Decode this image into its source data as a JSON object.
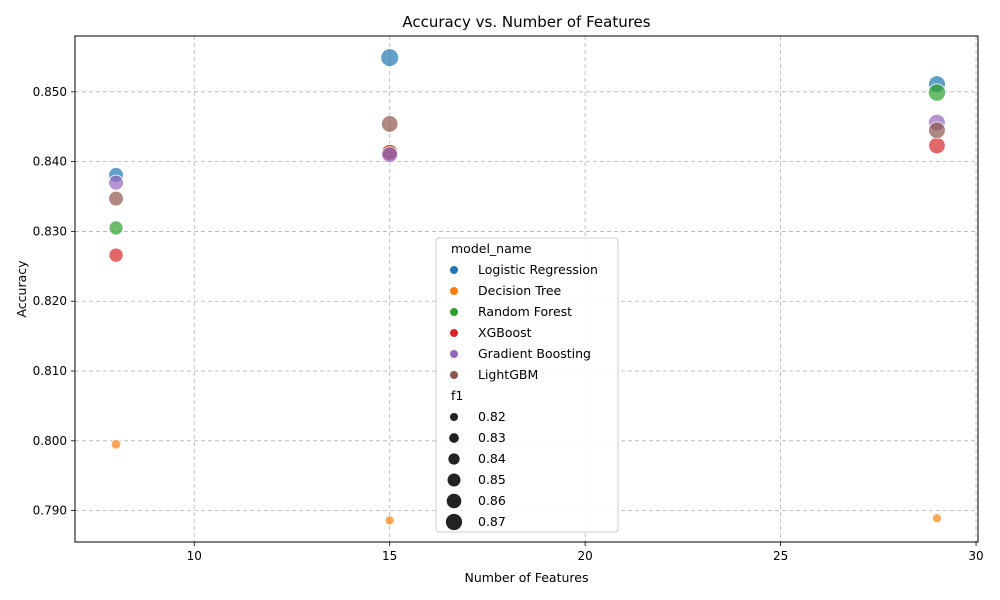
{
  "chart_data": {
    "type": "scatter",
    "title": "Accuracy vs. Number of Features",
    "xlabel": "Number of Features",
    "ylabel": "Accuracy",
    "xlim": [
      6.95,
      30.05
    ],
    "ylim": [
      0.7855,
      0.858
    ],
    "xticks": [
      10,
      15,
      20,
      25,
      30
    ],
    "yticks": [
      0.79,
      0.8,
      0.81,
      0.82,
      0.83,
      0.84,
      0.85
    ],
    "grid": true,
    "legend_placement": "center-bottom",
    "hue_title": "model_name",
    "size_title": "f1",
    "size_legend": [
      0.82,
      0.83,
      0.84,
      0.85,
      0.86,
      0.87
    ],
    "series": [
      {
        "name": "Logistic Regression",
        "color": "#1f77b4",
        "points": [
          {
            "x": 8,
            "y": 0.8381,
            "f1": 0.852
          },
          {
            "x": 15,
            "y": 0.8549,
            "f1": 0.869
          },
          {
            "x": 29,
            "y": 0.8511,
            "f1": 0.864
          }
        ]
      },
      {
        "name": "Decision Tree",
        "color": "#ff7f0e",
        "points": [
          {
            "x": 8,
            "y": 0.7995,
            "f1": 0.823
          },
          {
            "x": 15,
            "y": 0.7886,
            "f1": 0.819
          },
          {
            "x": 29,
            "y": 0.7889,
            "f1": 0.819
          }
        ]
      },
      {
        "name": "Random Forest",
        "color": "#2ca02c",
        "points": [
          {
            "x": 8,
            "y": 0.8305,
            "f1": 0.848
          },
          {
            "x": 15,
            "y": 0.8414,
            "f1": 0.857
          },
          {
            "x": 29,
            "y": 0.8499,
            "f1": 0.866
          }
        ]
      },
      {
        "name": "XGBoost",
        "color": "#d62728",
        "points": [
          {
            "x": 8,
            "y": 0.8266,
            "f1": 0.849
          },
          {
            "x": 15,
            "y": 0.8413,
            "f1": 0.86
          },
          {
            "x": 29,
            "y": 0.8423,
            "f1": 0.862
          }
        ]
      },
      {
        "name": "Gradient Boosting",
        "color": "#9467bd",
        "points": [
          {
            "x": 8,
            "y": 0.837,
            "f1": 0.853
          },
          {
            "x": 15,
            "y": 0.841,
            "f1": 0.858
          },
          {
            "x": 29,
            "y": 0.8456,
            "f1": 0.863
          }
        ]
      },
      {
        "name": "LightGBM",
        "color": "#8c564b",
        "points": [
          {
            "x": 8,
            "y": 0.8347,
            "f1": 0.852
          },
          {
            "x": 15,
            "y": 0.8454,
            "f1": 0.862
          },
          {
            "x": 29,
            "y": 0.8445,
            "f1": 0.863
          }
        ]
      }
    ]
  }
}
